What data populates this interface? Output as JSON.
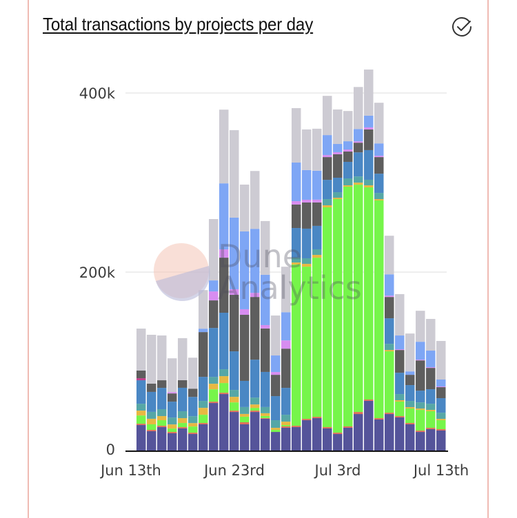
{
  "card": {
    "title": "Total transactions by projects per day",
    "status_icon": "check-circle-icon",
    "border_color": "#efbab3"
  },
  "watermark": {
    "line1": "Dune",
    "line2": "Analytics"
  },
  "chart_data": {
    "type": "bar",
    "stacked": true,
    "title": "Total transactions by projects per day",
    "xlabel": "",
    "ylabel": "",
    "ylim": [
      0,
      430000
    ],
    "grid": true,
    "legend": "none",
    "y_ticks": [
      {
        "value": 0,
        "label": "0"
      },
      {
        "value": 200000,
        "label": "200k"
      },
      {
        "value": 400000,
        "label": "400k"
      }
    ],
    "x_ticks": [
      {
        "index": 0,
        "label": "Jun 13th"
      },
      {
        "index": 10,
        "label": "Jun 23rd"
      },
      {
        "index": 20,
        "label": "Jul 3rd"
      },
      {
        "index": 30,
        "label": "Jul 13th"
      }
    ],
    "categories": [
      "2021-06-13",
      "2021-06-14",
      "2021-06-15",
      "2021-06-16",
      "2021-06-17",
      "2021-06-18",
      "2021-06-19",
      "2021-06-20",
      "2021-06-21",
      "2021-06-22",
      "2021-06-23",
      "2021-06-24",
      "2021-06-25",
      "2021-06-26",
      "2021-06-27",
      "2021-06-28",
      "2021-06-29",
      "2021-06-30",
      "2021-07-01",
      "2021-07-02",
      "2021-07-03",
      "2021-07-04",
      "2021-07-05",
      "2021-07-06",
      "2021-07-07",
      "2021-07-08",
      "2021-07-09",
      "2021-07-10",
      "2021-07-11",
      "2021-07-12"
    ],
    "series": [
      {
        "color": "#55549a",
        "values": [
          29200,
          22300,
          26900,
          20000,
          25400,
          19200,
          30000,
          53800,
          63800,
          43800,
          30000,
          43800,
          36200,
          21500,
          26200,
          26900,
          34600,
          36900,
          25400,
          19200,
          26200,
          41500,
          56200,
          35400,
          41500,
          37700,
          30000,
          21500,
          24600,
          23100
        ]
      },
      {
        "color": "#e0705a",
        "values": [
          1500,
          1500,
          1500,
          1500,
          1500,
          1500,
          1500,
          1500,
          1500,
          1500,
          2300,
          1500,
          800,
          0,
          1500,
          1500,
          1500,
          1500,
          1500,
          1500,
          1500,
          2300,
          1500,
          1500,
          1500,
          1500,
          1500,
          1500,
          1500,
          1500
        ]
      },
      {
        "color": "#76f54a",
        "values": [
          9200,
          6200,
          6200,
          3800,
          4600,
          6900,
          9200,
          13800,
          10800,
          9200,
          6200,
          3100,
          2300,
          2300,
          1500,
          180000,
          170000,
          177700,
          245400,
          260800,
          267700,
          253800,
          236900,
          243100,
          68500,
          16200,
          16200,
          23100,
          18500,
          10000
        ]
      },
      {
        "color": "#e8b842",
        "values": [
          5400,
          6200,
          4600,
          4600,
          5400,
          3800,
          7700,
          6200,
          7700,
          6200,
          3100,
          3800,
          3100,
          2300,
          3800,
          2300,
          3100,
          3100,
          2300,
          1500,
          1500,
          2300,
          2300,
          1500,
          1500,
          1500,
          1500,
          1500,
          1500,
          1500
        ]
      },
      {
        "color": "#56a7a6",
        "values": [
          7700,
          7700,
          7700,
          7700,
          7700,
          7700,
          7700,
          7700,
          7700,
          7700,
          7700,
          7700,
          6900,
          8500,
          7700,
          5400,
          6200,
          6200,
          6900,
          6200,
          7700,
          6900,
          6200,
          6900,
          6900,
          6900,
          6900,
          6900,
          6900,
          6900
        ]
      },
      {
        "color": "#4a87c4",
        "values": [
          26200,
          22300,
          23800,
          17700,
          26200,
          21500,
          26900,
          54600,
          63100,
          43100,
          29200,
          42300,
          39200,
          26900,
          30000,
          33100,
          33100,
          26200,
          21500,
          16200,
          18500,
          26900,
          33100,
          21500,
          28500,
          23800,
          17700,
          13100,
          16200,
          16200
        ]
      },
      {
        "color": "#c0408c",
        "values": [
          2300,
          0,
          0,
          0,
          0,
          0,
          0,
          0,
          0,
          0,
          0,
          0,
          0,
          0,
          0,
          0,
          0,
          0,
          0,
          0,
          0,
          0,
          0,
          0,
          0,
          0,
          0,
          0,
          0,
          0
        ]
      },
      {
        "color": "#5e5e5e",
        "values": [
          8500,
          9200,
          8500,
          9200,
          8500,
          9200,
          50000,
          30800,
          61500,
          63100,
          73800,
          70000,
          48500,
          23800,
          43800,
          26200,
          29200,
          26200,
          25400,
          26200,
          11500,
          10800,
          23100,
          18500,
          23800,
          25400,
          11500,
          33800,
          23800,
          12300
        ]
      },
      {
        "color": "#d78df0",
        "values": [
          0,
          0,
          0,
          1500,
          0,
          0,
          0,
          10000,
          9200,
          6200,
          6200,
          4600,
          3800,
          3100,
          9200,
          3800,
          3100,
          3100,
          2300,
          2300,
          2300,
          1500,
          2300,
          1500,
          1500,
          800,
          0,
          800,
          800,
          800
        ]
      },
      {
        "color": "#7ea6f5",
        "values": [
          0,
          0,
          0,
          0,
          0,
          0,
          3800,
          12300,
          73800,
          80000,
          86900,
          71500,
          56200,
          18500,
          31500,
          43100,
          33100,
          32300,
          22300,
          9200,
          9200,
          13800,
          13100,
          13800,
          23800,
          15400,
          3800,
          20000,
          18500,
          7700
        ]
      },
      {
        "color": "#cdcbd3",
        "values": [
          46900,
          54600,
          50000,
          37700,
          46900,
          34600,
          43100,
          68500,
          82300,
          97700,
          52300,
          64600,
          60000,
          44600,
          50800,
          60800,
          45400,
          46900,
          43800,
          38500,
          33800,
          46900,
          51500,
          45400,
          43100,
          46200,
          42300,
          34600,
          35400,
          43100
        ]
      }
    ]
  }
}
